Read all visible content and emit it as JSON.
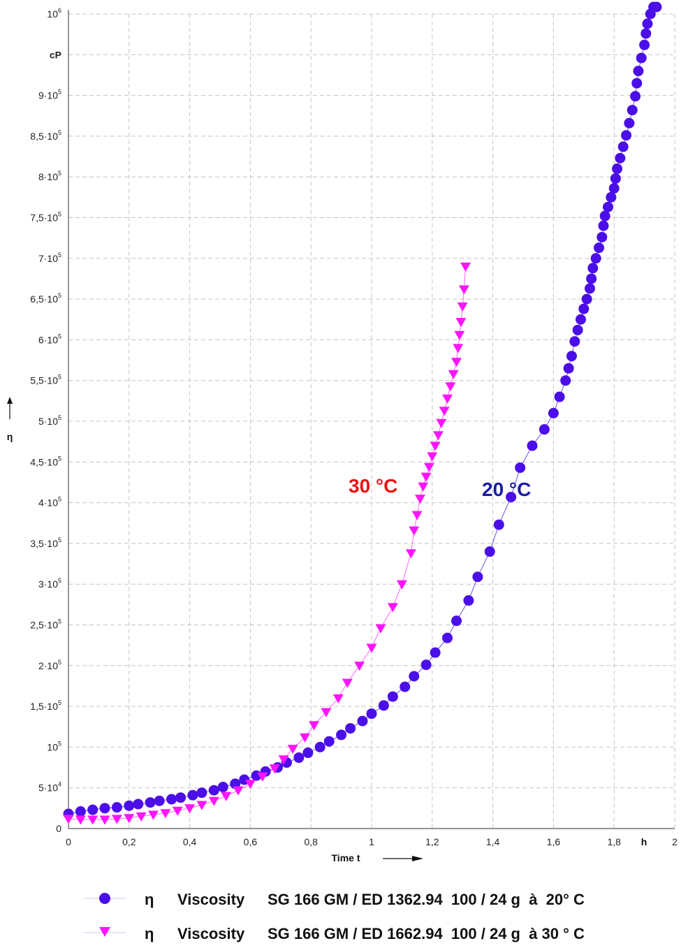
{
  "chart_data": {
    "type": "scatter",
    "title": "",
    "xlabel": "Time t",
    "x_unit": "h",
    "ylabel": "η",
    "y_unit": "cP",
    "xlim": [
      0,
      2
    ],
    "ylim": [
      0,
      1000000
    ],
    "grid": true,
    "legend_position": "bottom",
    "x_ticks": [
      {
        "value": 0,
        "label": "0"
      },
      {
        "value": 0.2,
        "label": "0,2"
      },
      {
        "value": 0.4,
        "label": "0,4"
      },
      {
        "value": 0.6,
        "label": "0,6"
      },
      {
        "value": 0.8,
        "label": "0,8"
      },
      {
        "value": 1.0,
        "label": "1"
      },
      {
        "value": 1.2,
        "label": "1,2"
      },
      {
        "value": 1.4,
        "label": "1,4"
      },
      {
        "value": 1.6,
        "label": "1,6"
      },
      {
        "value": 1.8,
        "label": "1,8"
      },
      {
        "value": 2.0,
        "label": "2"
      }
    ],
    "y_ticks": [
      {
        "value": 0,
        "mant": "0",
        "exp": ""
      },
      {
        "value": 50000,
        "mant": "5·10",
        "exp": "4"
      },
      {
        "value": 100000,
        "mant": "10",
        "exp": "5"
      },
      {
        "value": 150000,
        "mant": "1,5·10",
        "exp": "5"
      },
      {
        "value": 200000,
        "mant": "2·10",
        "exp": "5"
      },
      {
        "value": 250000,
        "mant": "2,5·10",
        "exp": "5"
      },
      {
        "value": 300000,
        "mant": "3·10",
        "exp": "5"
      },
      {
        "value": 350000,
        "mant": "3,5·10",
        "exp": "5"
      },
      {
        "value": 400000,
        "mant": "4·10",
        "exp": "5"
      },
      {
        "value": 450000,
        "mant": "4,5·10",
        "exp": "5"
      },
      {
        "value": 500000,
        "mant": "5·10",
        "exp": "5"
      },
      {
        "value": 550000,
        "mant": "5,5·10",
        "exp": "5"
      },
      {
        "value": 600000,
        "mant": "6·10",
        "exp": "5"
      },
      {
        "value": 650000,
        "mant": "6,5·10",
        "exp": "5"
      },
      {
        "value": 700000,
        "mant": "7·10",
        "exp": "5"
      },
      {
        "value": 750000,
        "mant": "7,5·10",
        "exp": "5"
      },
      {
        "value": 800000,
        "mant": "8·10",
        "exp": "5"
      },
      {
        "value": 850000,
        "mant": "8,5·10",
        "exp": "5"
      },
      {
        "value": 900000,
        "mant": "9·10",
        "exp": "5"
      },
      {
        "value": 950000,
        "mant": "cP",
        "exp": ""
      },
      {
        "value": 1000000,
        "mant": "10",
        "exp": "6"
      }
    ],
    "series": [
      {
        "marker": "circle",
        "color": "#4b0ee8",
        "line_color": "#6a50e0",
        "legend_symbol": "η",
        "legend_label": "Viscosity",
        "legend_sample": "SG 166 GM / ED 1362.94  100 / 24 g  à  20° C",
        "annotation": "20 °C",
        "annotation_color": "#1a1aa6",
        "x": [
          0.0,
          0.04,
          0.08,
          0.12,
          0.16,
          0.2,
          0.23,
          0.27,
          0.3,
          0.34,
          0.37,
          0.41,
          0.44,
          0.48,
          0.51,
          0.55,
          0.58,
          0.62,
          0.65,
          0.69,
          0.72,
          0.76,
          0.79,
          0.83,
          0.86,
          0.9,
          0.93,
          0.97,
          1.0,
          1.04,
          1.07,
          1.11,
          1.14,
          1.18,
          1.21,
          1.25,
          1.28,
          1.32,
          1.35,
          1.39,
          1.42,
          1.46,
          1.49,
          1.53,
          1.57,
          1.6,
          1.62,
          1.64,
          1.65,
          1.66,
          1.67,
          1.68,
          1.69,
          1.7,
          1.71,
          1.72,
          1.725,
          1.73,
          1.74,
          1.75,
          1.76,
          1.765,
          1.77,
          1.78,
          1.79,
          1.8,
          1.805,
          1.81,
          1.82,
          1.83,
          1.84,
          1.85,
          1.86,
          1.87,
          1.875,
          1.88,
          1.89,
          1.9,
          1.905,
          1.91,
          1.92,
          1.93,
          1.94
        ],
        "y": [
          18000,
          21000,
          23000,
          25000,
          26000,
          28000,
          30000,
          32000,
          34000,
          36000,
          38000,
          41000,
          44000,
          47000,
          51000,
          55000,
          60000,
          65000,
          70000,
          75000,
          81000,
          87000,
          93000,
          100000,
          107000,
          115000,
          123000,
          132000,
          141000,
          151000,
          162000,
          174000,
          187000,
          201000,
          216000,
          234000,
          255000,
          280000,
          309000,
          340000,
          373000,
          407000,
          443000,
          470000,
          490000,
          510000,
          530000,
          550000,
          565000,
          580000,
          598000,
          612000,
          625000,
          638000,
          650000,
          663000,
          675000,
          688000,
          700000,
          713000,
          726000,
          740000,
          752000,
          763000,
          775000,
          786000,
          798000,
          810000,
          823000,
          837000,
          851000,
          866000,
          882000,
          899000,
          915000,
          930000,
          946000,
          962000,
          976000,
          988000,
          1000000,
          1010000,
          1020000
        ]
      },
      {
        "marker": "triangle-down",
        "color": "#ff14ff",
        "line_color": "#ff66ff",
        "legend_symbol": "η",
        "legend_label": "Viscosity",
        "legend_sample": "SG 166 GM / ED 1662.94  100 / 24 g  à 30 ° C",
        "annotation": "30 °C",
        "annotation_color": "#ee1111",
        "x": [
          0.0,
          0.04,
          0.08,
          0.12,
          0.16,
          0.2,
          0.24,
          0.28,
          0.32,
          0.36,
          0.4,
          0.44,
          0.48,
          0.52,
          0.56,
          0.6,
          0.64,
          0.68,
          0.71,
          0.74,
          0.78,
          0.81,
          0.85,
          0.89,
          0.92,
          0.96,
          1.0,
          1.03,
          1.07,
          1.1,
          1.13,
          1.14,
          1.15,
          1.16,
          1.17,
          1.18,
          1.19,
          1.2,
          1.21,
          1.22,
          1.23,
          1.24,
          1.25,
          1.26,
          1.27,
          1.28,
          1.285,
          1.29,
          1.295,
          1.3,
          1.305,
          1.31
        ],
        "y": [
          12000,
          11000,
          11000,
          11000,
          12000,
          13000,
          15000,
          17000,
          19000,
          22000,
          25000,
          29000,
          34000,
          40000,
          47000,
          55000,
          64000,
          74000,
          85000,
          98000,
          112000,
          127000,
          143000,
          160000,
          179000,
          200000,
          222000,
          246000,
          272000,
          300000,
          338000,
          366000,
          385000,
          405000,
          420000,
          432000,
          444000,
          457000,
          470000,
          483000,
          498000,
          513000,
          528000,
          543000,
          558000,
          573000,
          590000,
          606000,
          622000,
          641000,
          662000,
          690000
        ]
      }
    ]
  },
  "annotations": {
    "a20": "20 °C",
    "a30": "30 °C"
  },
  "axes": {
    "y_title": "η",
    "y_unit": "cP",
    "x_title": "Time t",
    "x_unit": "h"
  },
  "legend": [
    {
      "symbol": "η",
      "label": "Viscosity",
      "sample": "SG 166 GM / ED 1362.94  100 / 24 g  à  20° C"
    },
    {
      "symbol": "η",
      "label": "Viscosity",
      "sample": "SG 166 GM / ED 1662.94  100 / 24 g  à 30 ° C"
    }
  ]
}
